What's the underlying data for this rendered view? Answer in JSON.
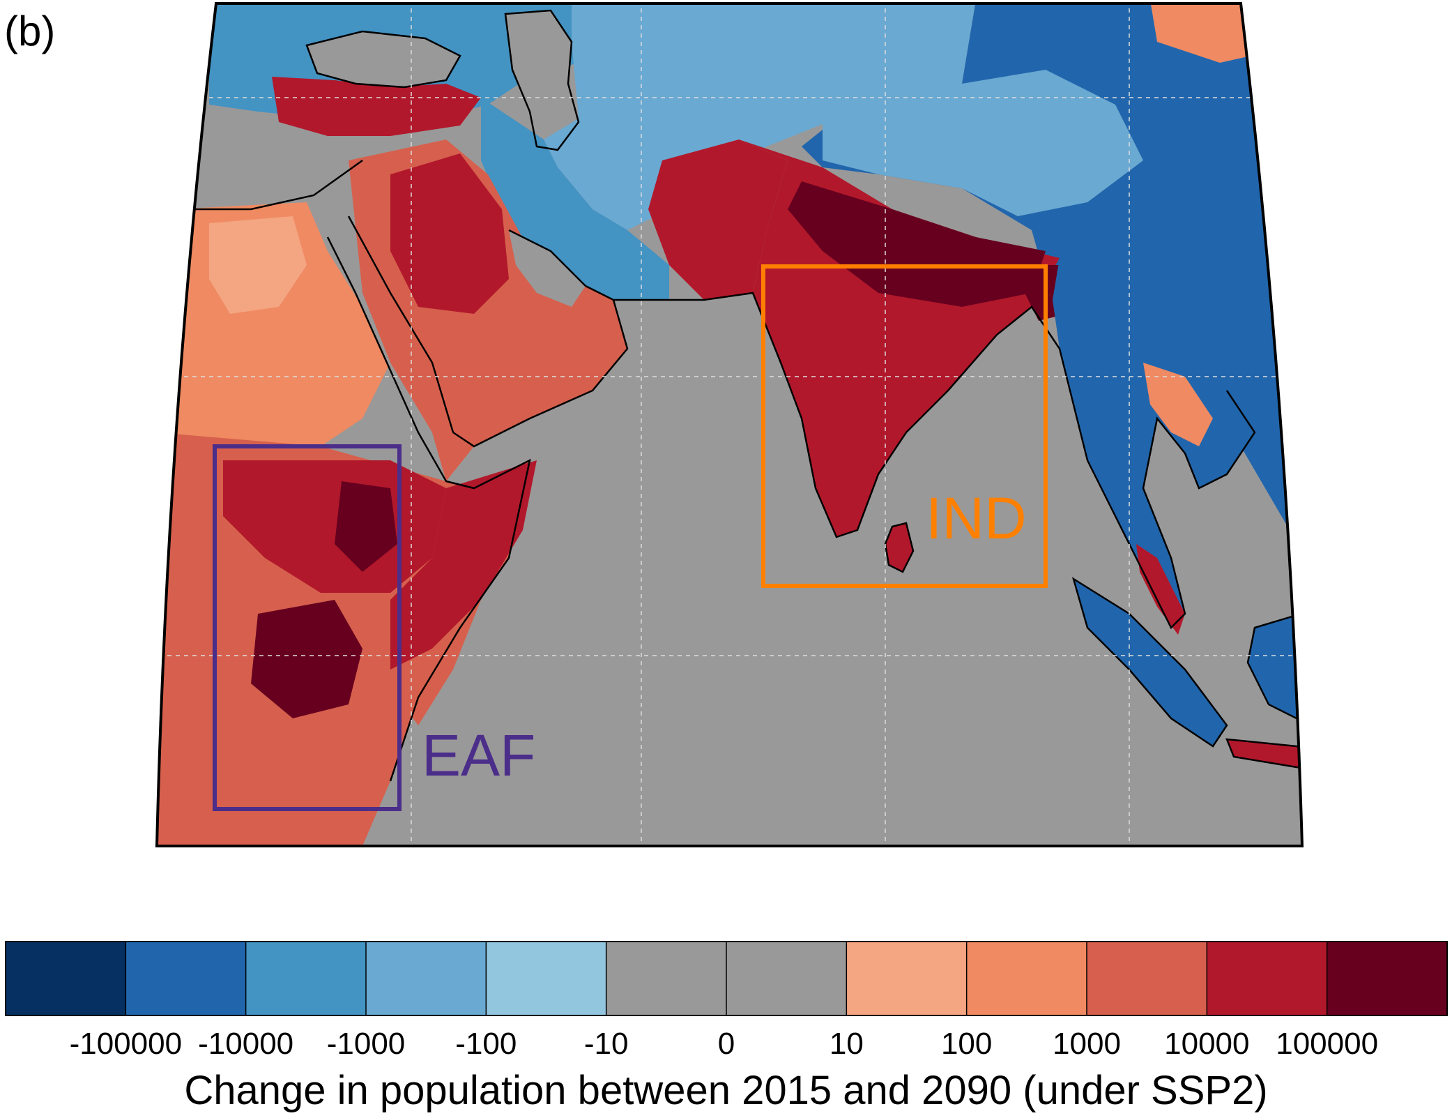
{
  "figure": {
    "panel_label": "(b)"
  },
  "map": {
    "regions": [
      {
        "label": "EAF",
        "color": "#4b2d8a"
      },
      {
        "label": "IND",
        "color": "#ff8000"
      }
    ],
    "palette": {
      "land_neg_strong": "#2166ac",
      "land_neg": "#4393c3",
      "land_neg_weak": "#92c5de",
      "no_change": "#999999",
      "pos_weak": "#f4a582",
      "pos": "#ef8a62",
      "pos_mid": "#d6604d",
      "pos_strong": "#b2182b",
      "pos_very_strong": "#67001f"
    }
  },
  "colorbar": {
    "title": "Change in population between 2015 and 2090 (under SSP2)",
    "colors": [
      "#053061",
      "#2166ac",
      "#4393c3",
      "#6aa9d2",
      "#92c5de",
      "#999999",
      "#999999",
      "#f4a582",
      "#ef8a62",
      "#d6604d",
      "#b2182b",
      "#67001f"
    ],
    "ticks": [
      "-100000",
      "-10000",
      "-1000",
      "-100",
      "-10",
      "0",
      "10",
      "100",
      "1000",
      "10000",
      "100000"
    ]
  }
}
